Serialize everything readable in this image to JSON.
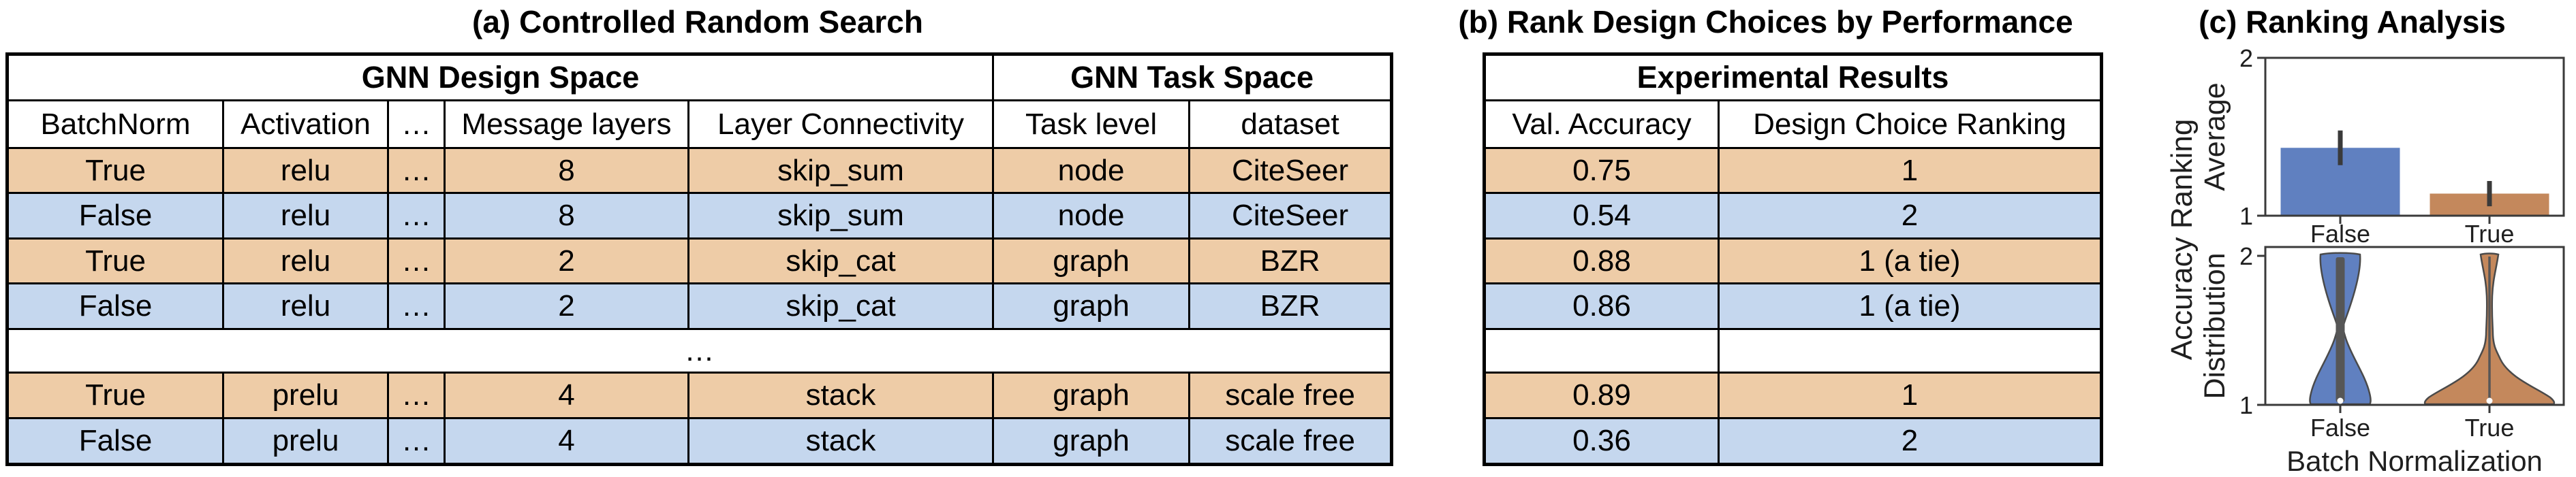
{
  "colors": {
    "row_tan": "#eecca7",
    "row_blue": "#c5d7ee",
    "bar_blue": "#6080c0",
    "bar_tan": "#c4885c",
    "spine_gray": "#3a3a3a",
    "violin_inner_gray": "#565656"
  },
  "panel_a": {
    "title": "(a) Controlled Random Search",
    "table": {
      "group_headers": {
        "design": "GNN Design Space",
        "task": "GNN Task Space"
      },
      "columns": [
        "BatchNorm",
        "Activation",
        "…",
        "Message layers",
        "Layer Connectivity",
        "Task level",
        "dataset"
      ],
      "rows": [
        [
          "True",
          "relu",
          "…",
          "8",
          "skip_sum",
          "node",
          "CiteSeer"
        ],
        [
          "False",
          "relu",
          "…",
          "8",
          "skip_sum",
          "node",
          "CiteSeer"
        ],
        [
          "True",
          "relu",
          "…",
          "2",
          "skip_cat",
          "graph",
          "BZR"
        ],
        [
          "False",
          "relu",
          "…",
          "2",
          "skip_cat",
          "graph",
          "BZR"
        ],
        [
          "True",
          "prelu",
          "…",
          "4",
          "stack",
          "graph",
          "scale free"
        ],
        [
          "False",
          "prelu",
          "…",
          "4",
          "stack",
          "graph",
          "scale free"
        ]
      ],
      "ellipsis_row": "…"
    }
  },
  "panel_b": {
    "title": "(b) Rank Design Choices by Performance",
    "table": {
      "group_header": "Experimental Results",
      "columns": [
        "Val. Accuracy",
        "Design Choice Ranking"
      ],
      "rows": [
        [
          "0.75",
          "1"
        ],
        [
          "0.54",
          "2"
        ],
        [
          "0.88",
          "1 (a tie)"
        ],
        [
          "0.86",
          "1 (a tie)"
        ],
        [
          "",
          ""
        ],
        [
          "0.89",
          "1"
        ],
        [
          "0.36",
          "2"
        ]
      ]
    }
  },
  "panel_c": {
    "title": "(c) Ranking Analysis",
    "outer_ylabel": "Accuracy Ranking",
    "xlabel": "Batch Normalization",
    "top_chart": {
      "ylabel": "Average",
      "ytick_top": "2",
      "ytick_bottom": "1",
      "xtick_false": "False",
      "xtick_true": "True"
    },
    "bottom_chart": {
      "ylabel": "Distribution",
      "ytick_top": "2",
      "ytick_bottom": "1",
      "xtick_false": "False",
      "xtick_true": "True"
    }
  },
  "chart_data": [
    {
      "type": "bar",
      "subplot": "top",
      "title": "",
      "categories": [
        "False",
        "True"
      ],
      "values": [
        1.43,
        1.14
      ],
      "errors_low": [
        1.32,
        1.06
      ],
      "errors_high": [
        1.54,
        1.22
      ],
      "bar_colors": [
        "#6080c0",
        "#c4885c"
      ],
      "ylabel": "Average",
      "xlabel": "",
      "ylim": [
        1,
        2
      ],
      "yticks": [
        1,
        2
      ],
      "grid": false,
      "legend": false
    },
    {
      "type": "violin",
      "subplot": "bottom",
      "categories": [
        "False",
        "True"
      ],
      "violin_colors": [
        "#6080c0",
        "#c4885c"
      ],
      "ylabel": "Distribution",
      "xlabel": "Batch Normalization",
      "ylim": [
        1,
        2
      ],
      "yticks": [
        1,
        2
      ],
      "grid": false,
      "density_profiles_y_halfwidthpx": {
        "False": [
          [
            2.0,
            30
          ],
          [
            1.85,
            26
          ],
          [
            1.6,
            10
          ],
          [
            1.45,
            12
          ],
          [
            1.25,
            30
          ],
          [
            1.05,
            44
          ],
          [
            1.0,
            44
          ]
        ],
        "True": [
          [
            2.0,
            13
          ],
          [
            1.85,
            6
          ],
          [
            1.5,
            4
          ],
          [
            1.3,
            14
          ],
          [
            1.15,
            50
          ],
          [
            1.05,
            90
          ],
          [
            1.0,
            93
          ]
        ]
      },
      "inner_marks": {
        "False": "thick gray quartile bar from 1 to 2 with white median dot near 1",
        "True": "thin gray line from 1 to 2 with white median dot near 1"
      }
    }
  ]
}
